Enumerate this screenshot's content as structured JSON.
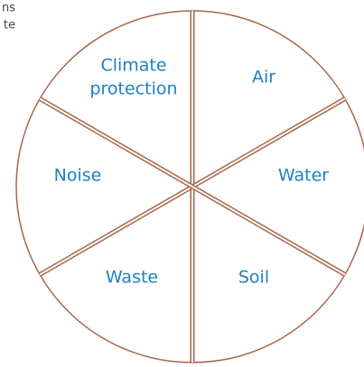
{
  "corner_text": [
    "ns",
    "te"
  ],
  "segments": [
    {
      "lines": [
        "Climate",
        "protection"
      ]
    },
    {
      "lines": [
        "Air"
      ]
    },
    {
      "lines": [
        "Water"
      ]
    },
    {
      "lines": [
        "Soil"
      ]
    },
    {
      "lines": [
        "Waste"
      ]
    },
    {
      "lines": [
        "Noise"
      ]
    }
  ]
}
